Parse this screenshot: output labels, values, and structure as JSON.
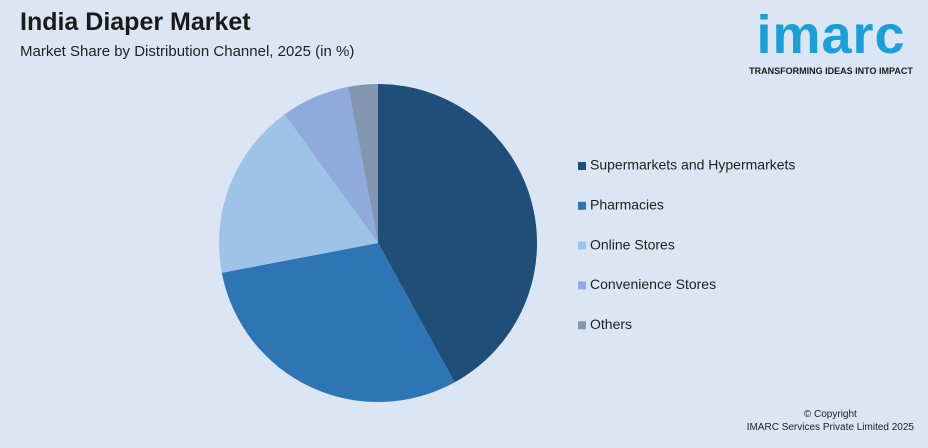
{
  "chart_data": {
    "type": "pie",
    "title": "India Diaper Market",
    "subtitle": "Market Share by Distribution Channel, 2025 (in %)",
    "categories": [
      "Supermarkets and Hypermarkets",
      "Pharmacies",
      "Online Stores",
      "Convenience Stores",
      "Others"
    ],
    "values": [
      42,
      30,
      18,
      7,
      3
    ],
    "colors": [
      "#1f4e79",
      "#2e75b6",
      "#9dc3e6",
      "#8faadc",
      "#8497b0"
    ],
    "legend": "right"
  },
  "logo": {
    "name": "imarc",
    "tagline": "TRANSFORMING IDEAS INTO IMPACT"
  },
  "footer": {
    "copyright": "© Copyright",
    "company": "IMARC Services Private Limited 2025"
  }
}
